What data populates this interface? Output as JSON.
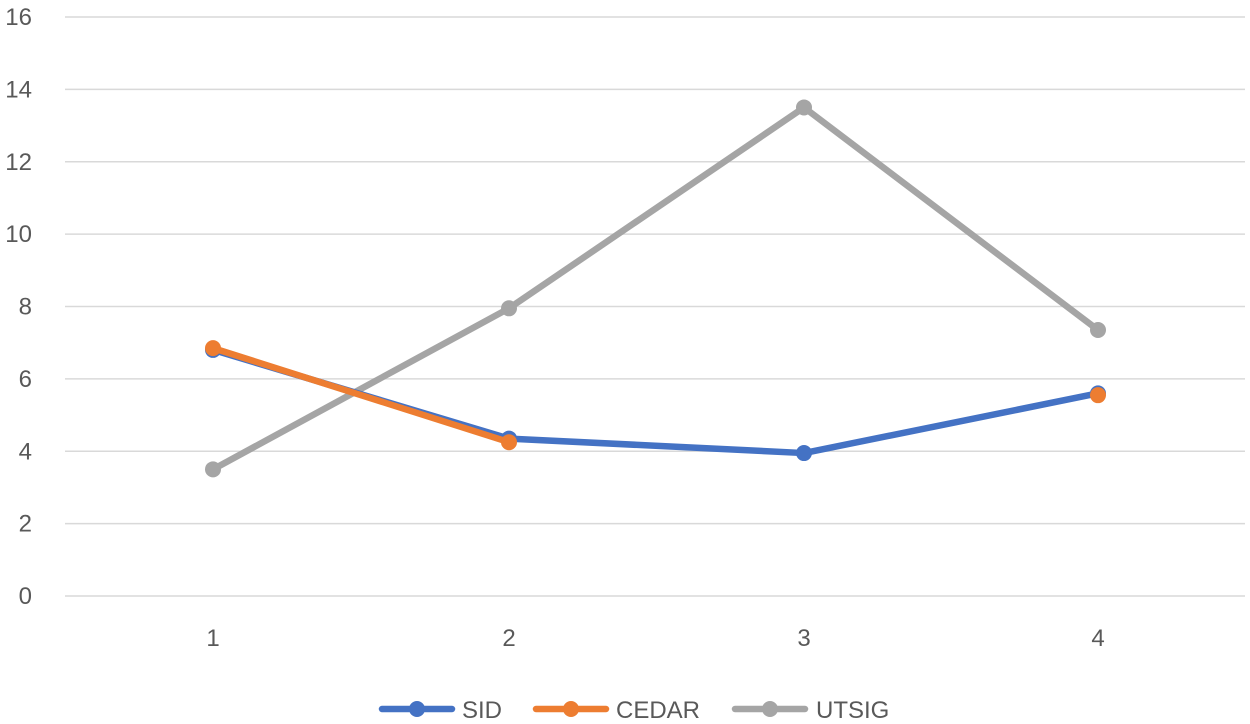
{
  "chart_data": {
    "type": "line",
    "title": "",
    "xlabel": "",
    "ylabel": "",
    "categories": [
      "1",
      "2",
      "3",
      "4"
    ],
    "ylim": [
      0,
      16
    ],
    "yticks": [
      "0",
      "2",
      "4",
      "6",
      "8",
      "10",
      "12",
      "14",
      "16"
    ],
    "grid": true,
    "legend_position": "bottom",
    "series": [
      {
        "name": "SID",
        "color": "#4472c4",
        "values": [
          6.8,
          4.35,
          3.95,
          5.6
        ]
      },
      {
        "name": "CEDAR",
        "color": "#ed7d31",
        "values": [
          6.85,
          4.25,
          null,
          5.55
        ]
      },
      {
        "name": "UTSIG",
        "color": "#a5a5a5",
        "values": [
          3.5,
          7.95,
          13.5,
          7.35
        ]
      }
    ]
  }
}
